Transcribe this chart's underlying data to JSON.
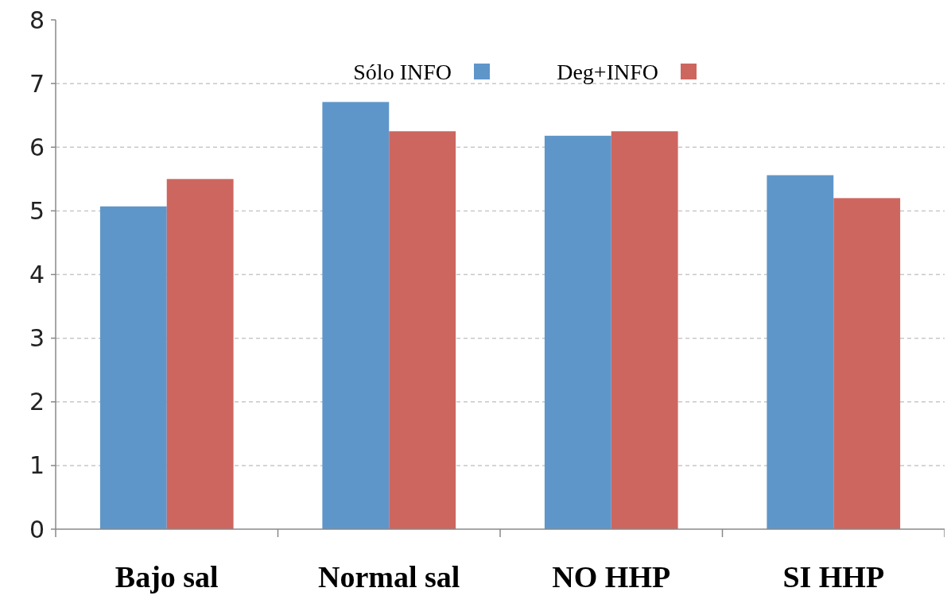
{
  "chart_data": {
    "type": "bar",
    "categories": [
      "Bajo sal",
      "Normal sal",
      "NO HHP",
      "SI HHP"
    ],
    "series": [
      {
        "name": "Sólo INFO",
        "color": "#5f96c9",
        "values": [
          5.07,
          6.71,
          6.18,
          5.56
        ]
      },
      {
        "name": "Deg+INFO",
        "color": "#cd665f",
        "values": [
          5.5,
          6.25,
          6.25,
          5.2
        ]
      }
    ],
    "ylim": [
      0,
      8
    ],
    "yticks": [
      0,
      1,
      2,
      3,
      4,
      5,
      6,
      7,
      8
    ],
    "grid": "y",
    "legend": "top right"
  }
}
